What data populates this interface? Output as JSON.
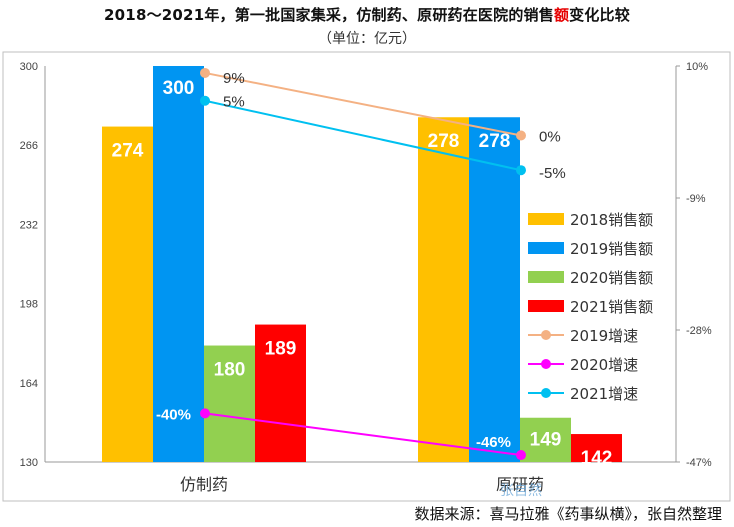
{
  "title_pre": "2018～2021年，第一批国家集采，仿制药、原研药在医院的销售",
  "title_highlight": "额",
  "title_post": "变化比较",
  "subtitle": "（单位：亿元）",
  "source": "数据来源：喜马拉雅《药事纵横》，张自然整理",
  "watermark": "张自然",
  "colors": {
    "s2018": "#ffc000",
    "s2019": "#0095f2",
    "s2020": "#92d050",
    "s2021": "#ff0000",
    "g2019": "#f4b183",
    "g2020": "#ff00ff",
    "g2021": "#00c0f0"
  },
  "chart_data": {
    "type": "bar",
    "categories": [
      "仿制药",
      "原研药"
    ],
    "series": [
      {
        "name": "2018销售额",
        "values": [
          274,
          278
        ]
      },
      {
        "name": "2019销售额",
        "values": [
          300,
          278
        ]
      },
      {
        "name": "2020销售额",
        "values": [
          180,
          149
        ]
      },
      {
        "name": "2021销售额",
        "values": [
          189,
          142
        ]
      }
    ],
    "line_series": [
      {
        "name": "2019增速",
        "values": [
          9,
          0
        ],
        "labels": [
          "9%",
          "0%"
        ]
      },
      {
        "name": "2020增速",
        "values": [
          -40,
          -46
        ],
        "labels": [
          "-40%",
          "-46%"
        ]
      },
      {
        "name": "2021增速",
        "values": [
          5,
          -5
        ],
        "labels": [
          "5%",
          "-5%"
        ]
      }
    ],
    "ylim": [
      130,
      300
    ],
    "y_ticks": [
      "130",
      "164",
      "198",
      "232",
      "266",
      "300"
    ],
    "y2lim": [
      -47,
      10
    ],
    "y2_ticks": [
      "10%",
      "-9%",
      "-28%",
      "-47%"
    ],
    "legend_position": "right"
  }
}
